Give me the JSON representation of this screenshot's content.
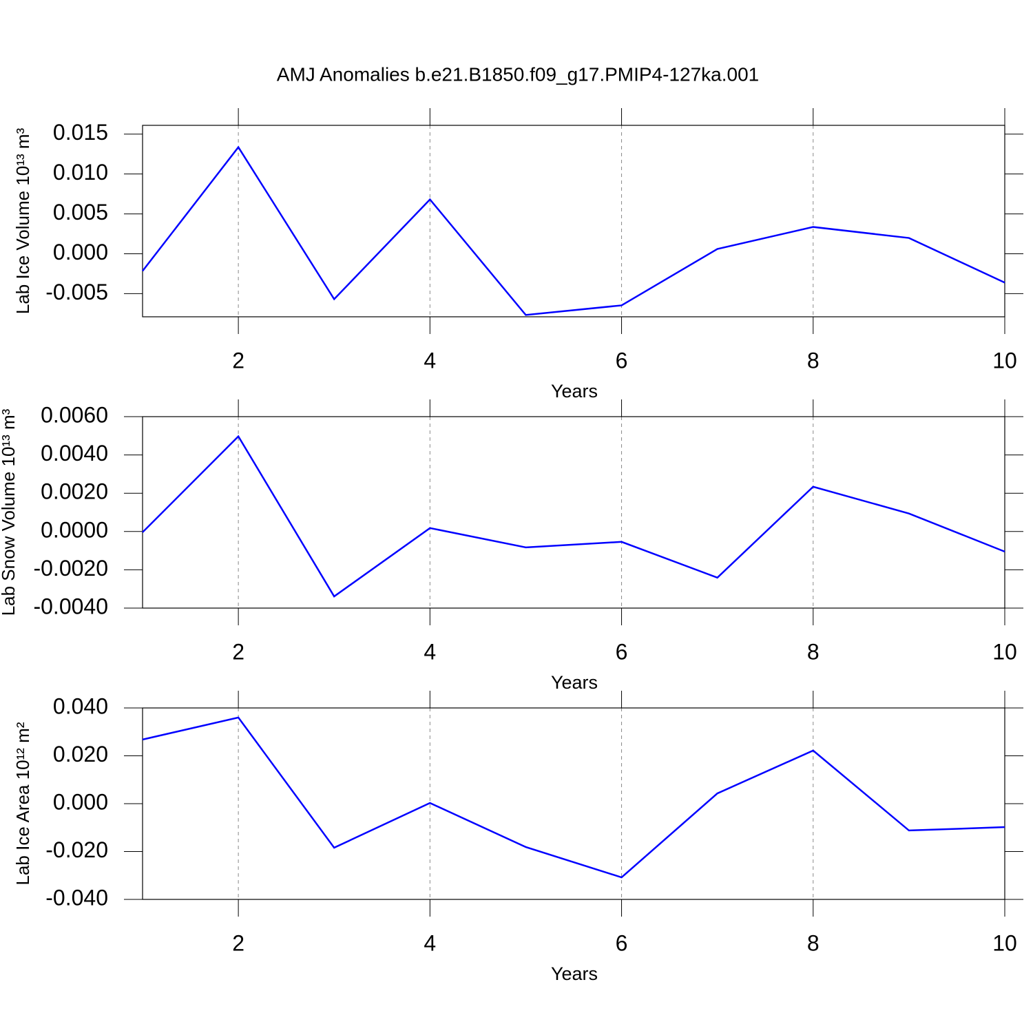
{
  "chart_data": [
    {
      "type": "line",
      "title": "AMJ Anomalies b.e21.B1850.f09_g17.PMIP4-127ka.001",
      "ylabel": "Lab Ice Volume 10¹³ m³",
      "xlabel": "Years",
      "x": [
        1,
        2,
        3,
        4,
        5,
        6,
        7,
        8,
        9,
        10
      ],
      "values": [
        -0.00216,
        0.01336,
        -0.00569,
        0.00681,
        -0.00767,
        -0.00647,
        0.0006,
        0.00336,
        0.00198,
        -0.00362
      ],
      "color": "#0000ff",
      "xlim": [
        1,
        10
      ],
      "xticks": [
        2,
        4,
        6,
        8,
        10
      ],
      "ylim": [
        -0.0079,
        0.0161
      ],
      "yticks": [
        0.015,
        {
          "value": 0.01,
          "label": "0.010"
        },
        0.005,
        {
          "value": 0,
          "label": "0.000"
        },
        -0.005
      ],
      "grid": true
    },
    {
      "type": "line",
      "ylabel": "Lab Snow Volume 10¹³ m³",
      "xlabel": "Years",
      "x": [
        1,
        2,
        3,
        4,
        5,
        6,
        7,
        8,
        9,
        10
      ],
      "values": [
        -4e-05,
        0.00497,
        -0.00339,
        0.00018,
        -0.00083,
        -0.00054,
        -0.00241,
        0.00234,
        0.00094,
        -0.00105
      ],
      "color": "#0000ff",
      "xlim": [
        1,
        10
      ],
      "xticks": [
        2,
        4,
        6,
        8,
        10
      ],
      "ylim": [
        -0.004,
        0.006
      ],
      "yticks": [
        {
          "value": 0.006,
          "label": "0.0060"
        },
        {
          "value": 0.004,
          "label": "0.0040"
        },
        {
          "value": 0.002,
          "label": "0.0020"
        },
        {
          "value": 0,
          "label": "0.0000"
        },
        {
          "value": -0.002,
          "label": "-0.0020"
        },
        {
          "value": -0.004,
          "label": "-0.0040"
        }
      ],
      "grid": true
    },
    {
      "type": "line",
      "ylabel": "Lab Ice Area 10¹² m²",
      "xlabel": "Years",
      "x": [
        1,
        2,
        3,
        4,
        5,
        6,
        7,
        8,
        9,
        10
      ],
      "values": [
        0.0268,
        0.036,
        -0.0184,
        0.0003,
        -0.0181,
        -0.0308,
        0.0043,
        0.0222,
        -0.0112,
        -0.0098
      ],
      "color": "#0000ff",
      "xlim": [
        1,
        10
      ],
      "xticks": [
        2,
        4,
        6,
        8,
        10
      ],
      "ylim": [
        -0.04,
        0.04
      ],
      "yticks": [
        {
          "value": 0.04,
          "label": "0.040"
        },
        {
          "value": 0.02,
          "label": "0.020"
        },
        {
          "value": 0,
          "label": "0.000"
        },
        {
          "value": -0.02,
          "label": "-0.020"
        },
        {
          "value": -0.04,
          "label": "-0.040"
        }
      ],
      "grid": true
    }
  ]
}
